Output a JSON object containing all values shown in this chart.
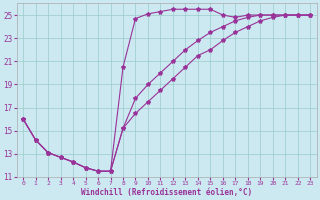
{
  "xlabel": "Windchill (Refroidissement éolien,°C)",
  "bg_color": "#cce8f0",
  "line_color": "#993399",
  "grid_color": "#99cccc",
  "xlim": [
    -0.5,
    23.5
  ],
  "ylim": [
    11,
    26
  ],
  "yticks": [
    11,
    13,
    15,
    17,
    19,
    21,
    23,
    25
  ],
  "xticks": [
    0,
    1,
    2,
    3,
    4,
    5,
    6,
    7,
    8,
    9,
    10,
    11,
    12,
    13,
    14,
    15,
    16,
    17,
    18,
    19,
    20,
    21,
    22,
    23
  ],
  "line1_x": [
    0,
    1,
    2,
    3,
    4,
    5,
    6,
    7,
    8,
    9,
    10,
    11,
    12,
    13,
    14,
    15,
    16,
    17,
    18,
    19,
    20,
    21,
    22,
    23
  ],
  "line1_y": [
    16.0,
    14.2,
    13.1,
    12.7,
    12.3,
    11.8,
    11.5,
    11.5,
    15.2,
    17.8,
    19.0,
    20.0,
    21.0,
    22.0,
    22.8,
    23.5,
    24.0,
    24.5,
    24.8,
    25.0,
    25.0,
    25.0,
    25.0,
    25.0
  ],
  "line2_x": [
    0,
    1,
    2,
    3,
    4,
    5,
    6,
    7,
    8,
    9,
    10,
    11,
    12,
    13,
    14,
    15,
    16,
    17,
    18,
    19,
    20,
    21,
    22,
    23
  ],
  "line2_y": [
    16.0,
    14.2,
    13.1,
    12.7,
    12.3,
    11.8,
    11.5,
    11.5,
    20.5,
    24.7,
    25.1,
    25.3,
    25.5,
    25.5,
    25.5,
    25.5,
    25.0,
    24.8,
    25.0,
    25.0,
    25.0,
    25.0,
    25.0,
    25.0
  ],
  "line3_x": [
    0,
    1,
    2,
    3,
    4,
    5,
    6,
    7,
    8,
    9,
    10,
    11,
    12,
    13,
    14,
    15,
    16,
    17,
    18,
    19,
    20,
    21,
    22,
    23
  ],
  "line3_y": [
    16.0,
    14.2,
    13.1,
    12.7,
    12.3,
    11.8,
    11.5,
    11.5,
    15.2,
    16.5,
    17.5,
    18.5,
    19.5,
    20.5,
    21.5,
    22.0,
    22.8,
    23.5,
    24.0,
    24.5,
    24.8,
    25.0,
    25.0,
    25.0
  ]
}
